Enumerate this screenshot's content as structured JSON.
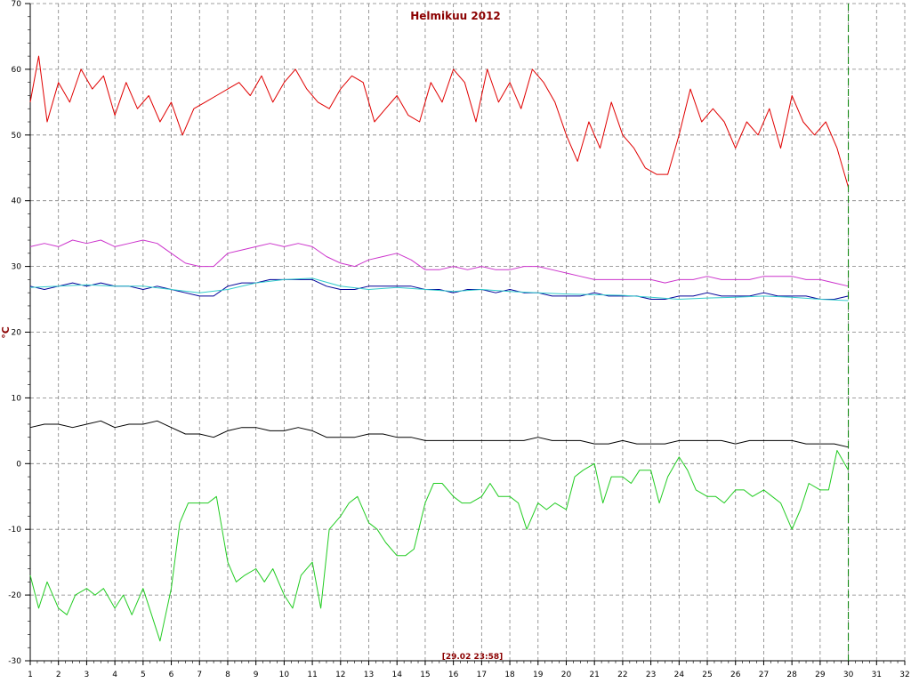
{
  "chart_data": {
    "type": "line",
    "title": "Helmikuu 2012",
    "ylabel": "°C",
    "xlabel": "",
    "cursor_label": "[29.02 23:58]",
    "cursor_x": 30,
    "xlim": [
      1,
      32
    ],
    "ylim": [
      -30,
      70
    ],
    "x_ticks": [
      1,
      2,
      3,
      4,
      5,
      6,
      7,
      8,
      9,
      10,
      11,
      12,
      13,
      14,
      15,
      16,
      17,
      18,
      19,
      20,
      21,
      22,
      23,
      24,
      25,
      26,
      27,
      28,
      29,
      30,
      31,
      32
    ],
    "y_ticks": [
      -30,
      -20,
      -10,
      0,
      10,
      20,
      30,
      40,
      50,
      60,
      70
    ],
    "grid": true,
    "colors": {
      "series1": "#e00000",
      "series2": "#cc33cc",
      "series3": "#000099",
      "series4": "#33cccc",
      "series5": "#000000",
      "series6": "#22cc22",
      "grid": "#808080",
      "cursor": "#008000",
      "title": "#8b0000"
    },
    "series": [
      {
        "x": [
          1.0,
          1.3,
          1.6,
          2.0,
          2.4,
          2.8,
          3.2,
          3.6,
          4.0,
          4.4,
          4.8,
          5.2,
          5.6,
          6.0,
          6.4,
          6.8,
          7.2,
          7.6,
          8.0,
          8.4,
          8.8,
          9.2,
          9.6,
          10.0,
          10.4,
          10.8,
          11.2,
          11.6,
          12.0,
          12.4,
          12.8,
          13.2,
          13.6,
          14.0,
          14.4,
          14.8,
          15.2,
          15.6,
          16.0,
          16.4,
          16.8,
          17.2,
          17.6,
          18.0,
          18.4,
          18.8,
          19.2,
          19.6,
          20.0,
          20.4,
          20.8,
          21.2,
          21.6,
          22.0,
          22.4,
          22.8,
          23.2,
          23.6,
          24.0,
          24.4,
          24.8,
          25.2,
          25.6,
          26.0,
          26.4,
          26.8,
          27.2,
          27.6,
          28.0,
          28.4,
          28.8,
          29.2,
          29.6,
          30.0
        ],
        "y": [
          55,
          62,
          52,
          58,
          55,
          60,
          57,
          59,
          53,
          58,
          54,
          56,
          52,
          55,
          50,
          54,
          55,
          56,
          57,
          58,
          56,
          59,
          55,
          58,
          60,
          57,
          55,
          54,
          57,
          59,
          58,
          52,
          54,
          56,
          53,
          52,
          58,
          55,
          60,
          58,
          52,
          60,
          55,
          58,
          54,
          60,
          58,
          55,
          50,
          46,
          52,
          48,
          55,
          50,
          48,
          45,
          44,
          44,
          50,
          57,
          52,
          54,
          52,
          48,
          52,
          50,
          54,
          48,
          56,
          52,
          50,
          52,
          48,
          42
        ]
      },
      {
        "x": [
          1.0,
          1.5,
          2.0,
          2.5,
          3.0,
          3.5,
          4.0,
          4.5,
          5.0,
          5.5,
          6.0,
          6.5,
          7.0,
          7.5,
          8.0,
          8.5,
          9.0,
          9.5,
          10.0,
          10.5,
          11.0,
          11.5,
          12.0,
          12.5,
          13.0,
          13.5,
          14.0,
          14.5,
          15.0,
          15.5,
          16.0,
          16.5,
          17.0,
          17.5,
          18.0,
          18.5,
          19.0,
          19.5,
          20.0,
          20.5,
          21.0,
          21.5,
          22.0,
          22.5,
          23.0,
          23.5,
          24.0,
          24.5,
          25.0,
          25.5,
          26.0,
          26.5,
          27.0,
          27.5,
          28.0,
          28.5,
          29.0,
          29.5,
          30.0
        ],
        "y": [
          33,
          33.5,
          33,
          34,
          33.5,
          34,
          33,
          33.5,
          34,
          33.5,
          32,
          30.5,
          30,
          30,
          32,
          32.5,
          33,
          33.5,
          33,
          33.5,
          33,
          31.5,
          30.5,
          30,
          31,
          31.5,
          32,
          31,
          29.5,
          29.5,
          30,
          29.5,
          30,
          29.5,
          29.5,
          30,
          30,
          29.5,
          29,
          28.5,
          28,
          28,
          28,
          28,
          28,
          27.5,
          28,
          28,
          28.5,
          28,
          28,
          28,
          28.5,
          28.5,
          28.5,
          28,
          28,
          27.5,
          27
        ]
      },
      {
        "x": [
          1.0,
          1.5,
          2.0,
          2.5,
          3.0,
          3.5,
          4.0,
          4.5,
          5.0,
          5.5,
          6.0,
          6.5,
          7.0,
          7.5,
          8.0,
          8.5,
          9.0,
          9.5,
          10.0,
          10.5,
          11.0,
          11.5,
          12.0,
          12.5,
          13.0,
          13.5,
          14.0,
          14.5,
          15.0,
          15.5,
          16.0,
          16.5,
          17.0,
          17.5,
          18.0,
          18.5,
          19.0,
          19.5,
          20.0,
          20.5,
          21.0,
          21.5,
          22.0,
          22.5,
          23.0,
          23.5,
          24.0,
          24.5,
          25.0,
          25.5,
          26.0,
          26.5,
          27.0,
          27.5,
          28.0,
          28.5,
          29.0,
          29.5,
          30.0
        ],
        "y": [
          27,
          26.5,
          27,
          27.5,
          27,
          27.5,
          27,
          27,
          26.5,
          27,
          26.5,
          26,
          25.5,
          25.5,
          27,
          27.5,
          27.5,
          28,
          28,
          28,
          28,
          27,
          26.5,
          26.5,
          27,
          27,
          27,
          27,
          26.5,
          26.5,
          26,
          26.5,
          26.5,
          26,
          26.5,
          26,
          26,
          25.5,
          25.5,
          25.5,
          26,
          25.5,
          25.5,
          25.5,
          25,
          25,
          25.5,
          25.5,
          26,
          25.5,
          25.5,
          25.5,
          26,
          25.5,
          25.5,
          25.5,
          25,
          25,
          25.5
        ]
      },
      {
        "x": [
          1.0,
          2.0,
          3.0,
          4.0,
          5.0,
          6.0,
          7.0,
          8.0,
          9.0,
          10.0,
          11.0,
          12.0,
          13.0,
          14.0,
          15.0,
          16.0,
          17.0,
          18.0,
          19.0,
          20.0,
          21.0,
          22.0,
          23.0,
          24.0,
          25.0,
          26.0,
          27.0,
          28.0,
          29.0,
          30.0
        ],
        "y": [
          26.8,
          27,
          27.2,
          27,
          27,
          26.5,
          26,
          26.5,
          27.5,
          28,
          28.2,
          27,
          26.5,
          26.8,
          26.5,
          26.2,
          26.5,
          26.2,
          26,
          25.8,
          25.7,
          25.6,
          25.3,
          25,
          25.2,
          25.3,
          25.5,
          25.3,
          25,
          24.8
        ]
      },
      {
        "x": [
          1.0,
          1.5,
          2.0,
          2.5,
          3.0,
          3.5,
          4.0,
          4.5,
          5.0,
          5.5,
          6.0,
          6.5,
          7.0,
          7.5,
          8.0,
          8.5,
          9.0,
          9.5,
          10.0,
          10.5,
          11.0,
          11.5,
          12.0,
          12.5,
          13.0,
          13.5,
          14.0,
          14.5,
          15.0,
          15.5,
          16.0,
          16.5,
          17.0,
          17.5,
          18.0,
          18.5,
          19.0,
          19.5,
          20.0,
          20.5,
          21.0,
          21.5,
          22.0,
          22.5,
          23.0,
          23.5,
          24.0,
          24.5,
          25.0,
          25.5,
          26.0,
          26.5,
          27.0,
          27.5,
          28.0,
          28.5,
          29.0,
          29.5,
          30.0
        ],
        "y": [
          5.5,
          6,
          6,
          5.5,
          6,
          6.5,
          5.5,
          6,
          6,
          6.5,
          5.5,
          4.5,
          4.5,
          4,
          5,
          5.5,
          5.5,
          5,
          5,
          5.5,
          5,
          4,
          4,
          4,
          4.5,
          4.5,
          4,
          4,
          3.5,
          3.5,
          3.5,
          3.5,
          3.5,
          3.5,
          3.5,
          3.5,
          4,
          3.5,
          3.5,
          3.5,
          3,
          3,
          3.5,
          3,
          3,
          3,
          3.5,
          3.5,
          3.5,
          3.5,
          3,
          3.5,
          3.5,
          3.5,
          3.5,
          3,
          3,
          3,
          2.5
        ]
      },
      {
        "x": [
          1.0,
          1.3,
          1.6,
          2.0,
          2.3,
          2.6,
          3.0,
          3.3,
          3.6,
          4.0,
          4.3,
          4.6,
          5.0,
          5.3,
          5.6,
          6.0,
          6.3,
          6.6,
          7.0,
          7.3,
          7.6,
          8.0,
          8.3,
          8.6,
          9.0,
          9.3,
          9.6,
          10.0,
          10.3,
          10.6,
          11.0,
          11.3,
          11.6,
          12.0,
          12.3,
          12.6,
          13.0,
          13.3,
          13.6,
          14.0,
          14.3,
          14.6,
          15.0,
          15.3,
          15.6,
          16.0,
          16.3,
          16.6,
          17.0,
          17.3,
          17.6,
          18.0,
          18.3,
          18.6,
          19.0,
          19.3,
          19.6,
          20.0,
          20.3,
          20.6,
          21.0,
          21.3,
          21.6,
          22.0,
          22.3,
          22.6,
          23.0,
          23.3,
          23.6,
          24.0,
          24.3,
          24.6,
          25.0,
          25.3,
          25.6,
          26.0,
          26.3,
          26.6,
          27.0,
          27.3,
          27.6,
          28.0,
          28.3,
          28.6,
          29.0,
          29.3,
          29.6,
          30.0
        ],
        "y": [
          -17,
          -22,
          -18,
          -22,
          -23,
          -20,
          -19,
          -20,
          -19,
          -22,
          -20,
          -23,
          -19,
          -23,
          -27,
          -19,
          -9,
          -6,
          -6,
          -6,
          -5,
          -15,
          -18,
          -17,
          -16,
          -18,
          -16,
          -20,
          -22,
          -17,
          -15,
          -22,
          -10,
          -8,
          -6,
          -5,
          -9,
          -10,
          -12,
          -14,
          -14,
          -13,
          -6,
          -3,
          -3,
          -5,
          -6,
          -6,
          -5,
          -3,
          -5,
          -5,
          -6,
          -10,
          -6,
          -7,
          -6,
          -7,
          -2,
          -1,
          0,
          -6,
          -2,
          -2,
          -3,
          -1,
          -1,
          -6,
          -2,
          1,
          -1,
          -4,
          -5,
          -5,
          -6,
          -4,
          -4,
          -5,
          -4,
          -5,
          -6,
          -10,
          -7,
          -3,
          -4,
          -4,
          2,
          -1
        ]
      }
    ]
  }
}
